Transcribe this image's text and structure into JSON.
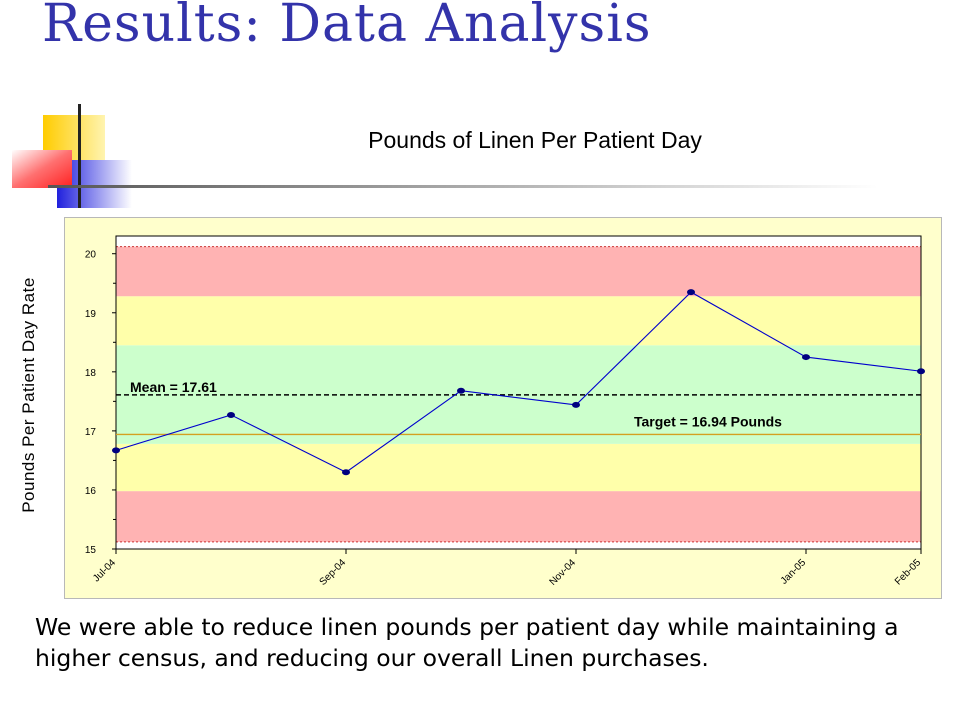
{
  "slide": {
    "title": "Results:  Data Analysis",
    "caption": "We were able to reduce linen pounds per patient day while maintaining a higher census, and reducing our overall Linen purchases."
  },
  "chart_data": {
    "type": "line",
    "title": "Pounds of Linen Per Patient Day",
    "xlabel": "",
    "ylabel": "Pounds Per Patient Day  Rate",
    "x_tick_labels": [
      "Jul-04",
      "Sep-04",
      "Nov-04",
      "Jan-05",
      "Feb-05"
    ],
    "x_tick_positions": [
      0,
      2,
      4,
      6,
      7
    ],
    "ylim": [
      15,
      20.3
    ],
    "y_ticks": [
      15,
      16,
      17,
      18,
      19,
      20
    ],
    "series": [
      {
        "values": [
          16.67,
          17.27,
          16.3,
          17.68,
          17.44,
          19.35,
          18.25,
          18.01
        ],
        "color": "#0000cc"
      }
    ],
    "mean": {
      "value": 17.61,
      "label": "Mean = 17.61"
    },
    "target": {
      "value": 16.94,
      "label": "Target = 16.94 Pounds"
    },
    "bands": [
      {
        "from": 15.12,
        "to": 15.98,
        "color": "#ffb3b3"
      },
      {
        "from": 15.98,
        "to": 16.78,
        "color": "#ffffaa"
      },
      {
        "from": 16.78,
        "to": 18.45,
        "color": "#ccffcc"
      },
      {
        "from": 18.45,
        "to": 19.28,
        "color": "#ffffaa"
      },
      {
        "from": 19.28,
        "to": 20.12,
        "color": "#ffb3b3"
      }
    ],
    "limit_lines": [
      15.12,
      20.12
    ],
    "grid": false,
    "legend": "none"
  },
  "colors": {
    "title": "#3333aa",
    "plot_background": "#ffffcc",
    "series_line": "#0000cc",
    "mean_line": "#000000",
    "target_line": "#d4a020"
  }
}
